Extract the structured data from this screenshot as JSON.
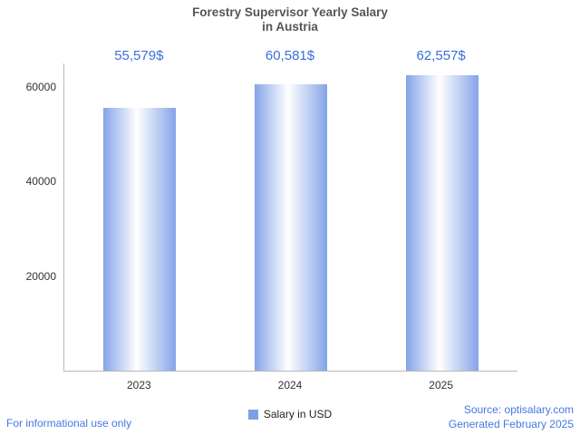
{
  "chart_data": {
    "type": "bar",
    "title": "Forestry Supervisor Yearly Salary in Austria",
    "title_lines": [
      "Forestry Supervisor Yearly Salary",
      "in Austria"
    ],
    "categories": [
      "2023",
      "2024",
      "2025"
    ],
    "series": [
      {
        "name": "Salary in USD",
        "values": [
          55579,
          60581,
          62557
        ]
      }
    ],
    "value_labels": [
      "55,579$",
      "60,581$",
      "62,557$"
    ],
    "xlabel": "",
    "ylabel": "",
    "yticks": [
      20000,
      40000,
      60000
    ],
    "ytick_labels": [
      "20000",
      "40000",
      "60000"
    ],
    "ylim": [
      0,
      65000
    ],
    "grid": false,
    "legend": {
      "position": "bottom",
      "label": "Salary in USD"
    },
    "colors": {
      "bar_edge": "#84a4e8",
      "bar_center": "#ffffff",
      "value_label": "#3a6fd8",
      "title": "#555555",
      "axis": "#b7b7b7",
      "tick_label": "#333333",
      "legend_marker": "#7d9fe6"
    }
  },
  "footer": {
    "disclaimer": "For informational use only",
    "source": "Source: optisalary.com",
    "generated": "Generated February 2025",
    "color": "#4577e0"
  }
}
